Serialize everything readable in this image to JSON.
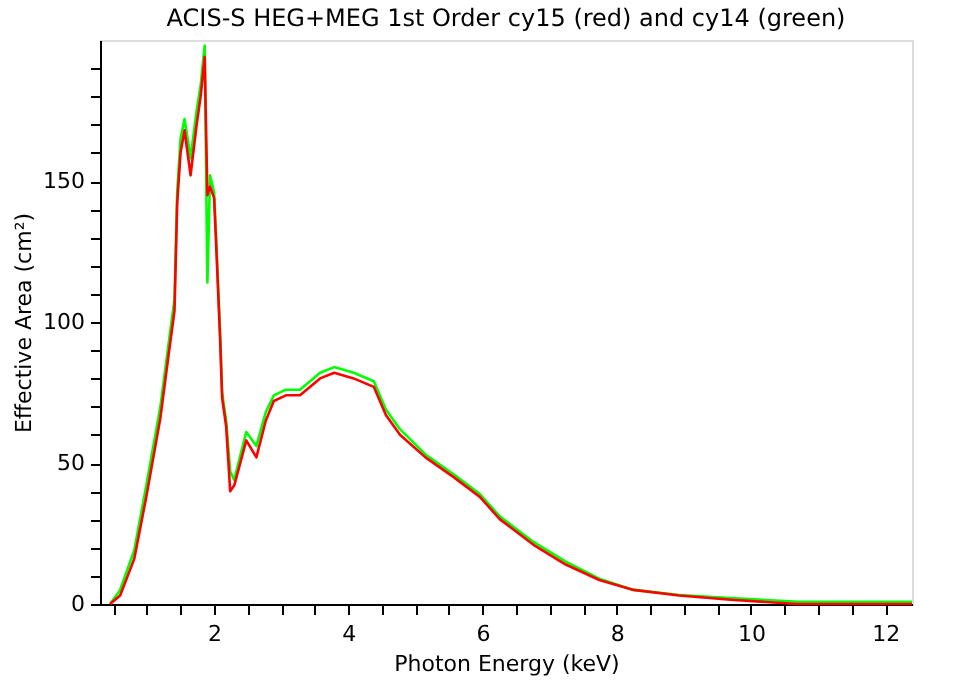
{
  "chart_data": {
    "type": "line",
    "title": "ACIS-S HEG+MEG 1st Order cy15 (red) and cy14 (green)",
    "xlabel": "Photon Energy (keV)",
    "ylabel": "Effective Area (cm²)",
    "xlim": [
      0.3,
      12.4
    ],
    "ylim": [
      0,
      200
    ],
    "xticks": [
      {
        "value": 0.5,
        "label": null
      },
      {
        "value": 1,
        "label": null
      },
      {
        "value": 1.5,
        "label": null
      },
      2,
      {
        "value": 2.5,
        "label": null
      },
      {
        "value": 3,
        "label": null
      },
      {
        "value": 3.5,
        "label": null
      },
      4,
      {
        "value": 4.5,
        "label": null
      },
      {
        "value": 5,
        "label": null
      },
      {
        "value": 5.5,
        "label": null
      },
      6,
      {
        "value": 6.5,
        "label": null
      },
      {
        "value": 7,
        "label": null
      },
      {
        "value": 7.5,
        "label": null
      },
      8,
      {
        "value": 8.5,
        "label": null
      },
      {
        "value": 9,
        "label": null
      },
      {
        "value": 9.5,
        "label": null
      },
      10,
      {
        "value": 10.5,
        "label": null
      },
      {
        "value": 11,
        "label": null
      },
      {
        "value": 11.5,
        "label": null
      },
      12
    ],
    "yticks": [
      0,
      {
        "value": 10,
        "label": null
      },
      {
        "value": 20,
        "label": null
      },
      {
        "value": 30,
        "label": null
      },
      {
        "value": 40,
        "label": null
      },
      50,
      {
        "value": 60,
        "label": null
      },
      {
        "value": 70,
        "label": null
      },
      {
        "value": 80,
        "label": null
      },
      {
        "value": 90,
        "label": null
      },
      100,
      {
        "value": 110,
        "label": null
      },
      {
        "value": 120,
        "label": null
      },
      {
        "value": 130,
        "label": null
      },
      {
        "value": 140,
        "label": null
      },
      150,
      {
        "value": 160,
        "label": null
      },
      {
        "value": 170,
        "label": null
      },
      {
        "value": 180,
        "label": null
      },
      {
        "value": 190,
        "label": null
      }
    ],
    "grid": false,
    "legend": false,
    "line_style": "solid",
    "marker": "none",
    "series": [
      {
        "color": "#00ff00",
        "x": [
          0.45,
          0.6,
          0.81,
          0.99,
          1.2,
          1.32,
          1.41,
          1.45,
          1.5,
          1.56,
          1.65,
          1.74,
          1.8,
          1.86,
          1.9,
          1.94,
          2.0,
          2.03,
          2.09,
          2.12,
          2.18,
          2.24,
          2.3,
          2.48,
          2.63,
          2.77,
          2.89,
          3.07,
          3.28,
          3.58,
          3.79,
          4.08,
          4.38,
          4.56,
          4.77,
          5.15,
          5.57,
          5.96,
          6.26,
          6.76,
          7.24,
          7.74,
          8.25,
          8.93,
          9.7,
          10.7,
          12.4
        ],
        "values": [
          0,
          5,
          19,
          42,
          70,
          92,
          108,
          146,
          165,
          172,
          158,
          175,
          184,
          198,
          114,
          152,
          146,
          130,
          96,
          75,
          65,
          47,
          44,
          61,
          56,
          68,
          74,
          76,
          76,
          82,
          84,
          82,
          79,
          69,
          62,
          53,
          46,
          39,
          31,
          22,
          15,
          9,
          5,
          3.2,
          2.1,
          0.8,
          0.8
        ]
      },
      {
        "color": "#ff0000",
        "x": [
          0.45,
          0.6,
          0.81,
          0.99,
          1.2,
          1.32,
          1.41,
          1.45,
          1.5,
          1.56,
          1.65,
          1.74,
          1.8,
          1.86,
          1.9,
          1.94,
          2.0,
          2.03,
          2.09,
          2.12,
          2.18,
          2.24,
          2.3,
          2.48,
          2.63,
          2.77,
          2.89,
          3.07,
          3.28,
          3.58,
          3.79,
          4.08,
          4.38,
          4.56,
          4.77,
          5.15,
          5.57,
          5.96,
          6.26,
          6.76,
          7.24,
          7.74,
          8.25,
          8.93,
          9.7,
          10.7,
          12.4
        ],
        "values": [
          0,
          3,
          16,
          38,
          66,
          88,
          104,
          142,
          160,
          168,
          152,
          170,
          180,
          194,
          145,
          148,
          144,
          128,
          94,
          73,
          63,
          40,
          42,
          58,
          52,
          65,
          72,
          74,
          74,
          80,
          82,
          80,
          77,
          67,
          60,
          52,
          45,
          38,
          30,
          21,
          14,
          8.5,
          5,
          3,
          1.5,
          0,
          0
        ]
      }
    ]
  }
}
